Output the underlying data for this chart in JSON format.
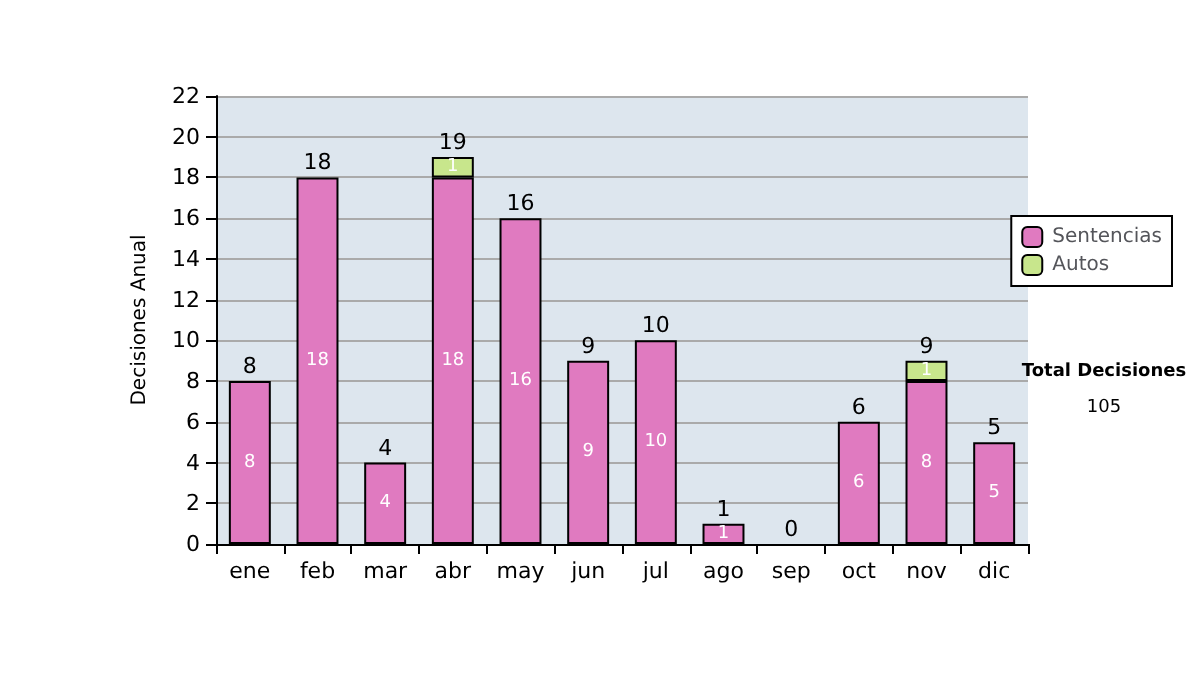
{
  "chart_data": {
    "type": "bar",
    "ylabel": "Decisiones Anual",
    "categories": [
      "ene",
      "feb",
      "mar",
      "abr",
      "may",
      "jun",
      "jul",
      "ago",
      "sep",
      "oct",
      "nov",
      "dic"
    ],
    "stacked": true,
    "series": [
      {
        "name": "Sentencias",
        "color": "#e07ac0",
        "values": [
          8,
          18,
          4,
          18,
          16,
          9,
          10,
          1,
          0,
          6,
          8,
          5
        ],
        "value_labels": [
          "8",
          "18",
          "4",
          "18",
          "16",
          "9",
          "10",
          "1",
          null,
          "6",
          "8",
          "5"
        ]
      },
      {
        "name": "Autos",
        "color": "#c8e68c",
        "values": [
          0,
          0,
          0,
          1,
          0,
          0,
          0,
          0,
          0,
          0,
          1,
          0
        ],
        "value_labels": [
          null,
          null,
          null,
          "1",
          null,
          null,
          null,
          null,
          null,
          null,
          "1",
          null
        ]
      }
    ],
    "totals": [
      "8",
      "18",
      "4",
      "19",
      "16",
      "9",
      "10",
      "1",
      "0",
      "6",
      "9",
      "5"
    ],
    "ylim": [
      0,
      22
    ],
    "yticks": [
      0,
      2,
      4,
      6,
      8,
      10,
      12,
      14,
      16,
      18,
      20,
      22
    ],
    "grid": "y",
    "legend": "right",
    "annotations": [
      "Total Decisiones",
      "105"
    ]
  }
}
